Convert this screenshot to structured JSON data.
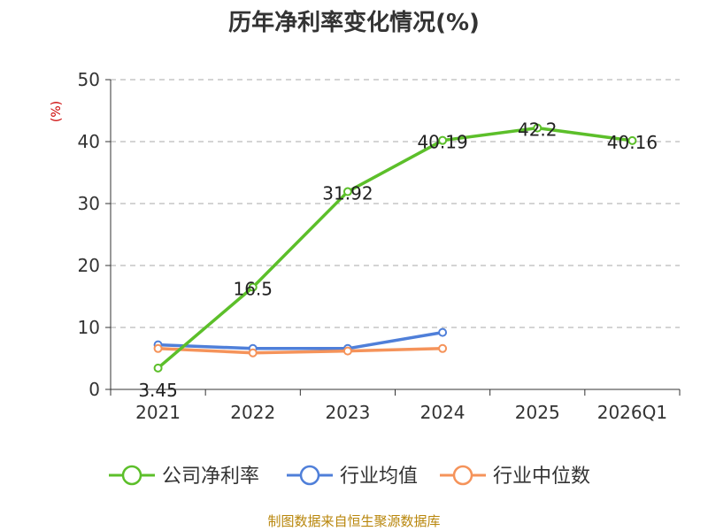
{
  "chart_data": {
    "type": "line",
    "title": "历年净利率变化情况(%)",
    "ylabel": "(%)",
    "categories": [
      "2021",
      "2022",
      "2023",
      "2024",
      "2025",
      "2026Q1"
    ],
    "ylim": [
      0,
      50
    ],
    "yticks": [
      0,
      10,
      20,
      30,
      40,
      50
    ],
    "grid": true,
    "legend_position": "bottom",
    "series": [
      {
        "name": "公司净利率",
        "color": "#5cbf2a",
        "values": [
          3.45,
          16.5,
          31.92,
          40.19,
          42.2,
          40.16
        ],
        "labels": [
          "3.45",
          "16.5",
          "31.92",
          "40.19",
          "42.2",
          "40.16"
        ]
      },
      {
        "name": "行业均值",
        "color": "#4f7fd9",
        "values": [
          7.2,
          6.6,
          6.6,
          9.2,
          null,
          null
        ]
      },
      {
        "name": "行业中位数",
        "color": "#f5935a",
        "values": [
          6.6,
          5.9,
          6.2,
          6.6,
          null,
          null
        ]
      }
    ]
  },
  "source": "制图数据来自恒生聚源数据库"
}
